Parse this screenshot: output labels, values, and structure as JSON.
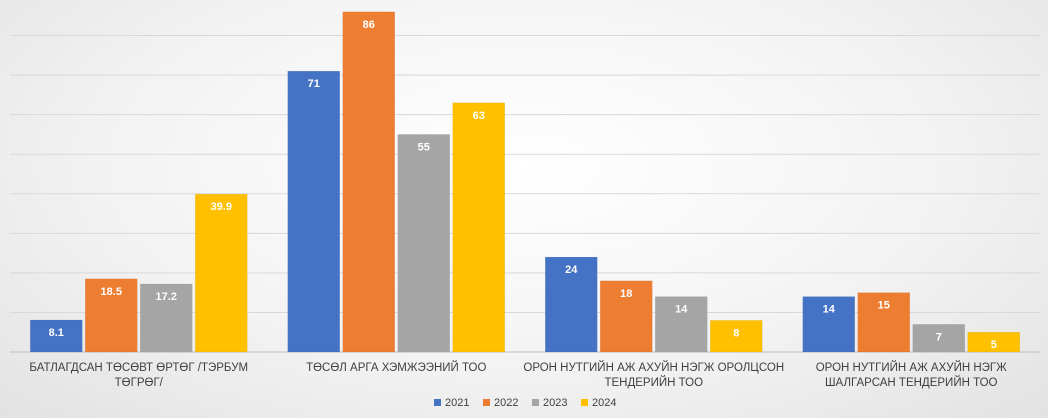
{
  "chart_data": {
    "type": "bar",
    "title": "",
    "xlabel": "",
    "ylabel": "",
    "ylim": [
      0,
      90
    ],
    "grid": true,
    "legend_position": "bottom",
    "categories": [
      [
        "БАТЛАГДСАН ТӨСӨВТ ӨРТӨГ /ТЭРБУМ",
        "ТӨГРӨГ/"
      ],
      [
        "ТӨСӨЛ АРГА ХЭМЖЭЭНИЙ ТОО"
      ],
      [
        "ОРОН НУТГИЙН АЖ АХУЙН НЭГЖ ОРОЛЦСОН",
        "ТЕНДЕРИЙН ТОО"
      ],
      [
        "ОРОН НУТГИЙН АЖ АХУЙН НЭГЖ",
        "ШАЛГАРСАН ТЕНДЕРИЙН ТОО"
      ]
    ],
    "series": [
      {
        "name": "2021",
        "color": "#4472C4",
        "values": [
          8.1,
          71,
          24,
          14
        ]
      },
      {
        "name": "2022",
        "color": "#ED7D31",
        "values": [
          18.5,
          86,
          18,
          15
        ]
      },
      {
        "name": "2023",
        "color": "#A5A5A5",
        "values": [
          17.2,
          55,
          14,
          7
        ]
      },
      {
        "name": "2024",
        "color": "#FFC000",
        "values": [
          39.9,
          63,
          8,
          5
        ]
      }
    ]
  }
}
